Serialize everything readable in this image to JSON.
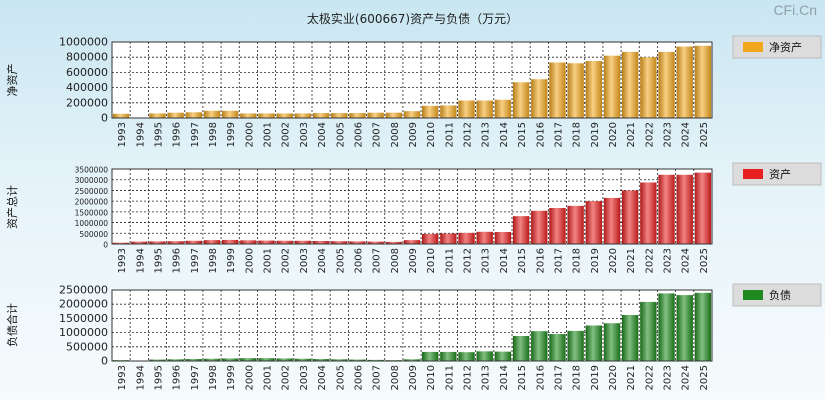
{
  "title": "太极实业(600667)资产与负债（万元）",
  "watermark": "CFi.Cn",
  "colors": {
    "net_assets": "#f2a81e",
    "total_assets": "#e81f1f",
    "liabilities": "#1e8a1e"
  },
  "chart_data": [
    {
      "type": "bar",
      "title": "",
      "ylabel": "净资产",
      "legend": "净资产",
      "color": "#f2a81e",
      "ylim": [
        0,
        1000000
      ],
      "yticks": [
        0,
        200000,
        400000,
        600000,
        800000,
        1000000
      ],
      "categories": [
        "1993",
        "1994",
        "1995",
        "1996",
        "1997",
        "1998",
        "1999",
        "2000",
        "2001",
        "2002",
        "2003",
        "2004",
        "2005",
        "2006",
        "2007",
        "2008",
        "2009",
        "2010",
        "2011",
        "2012",
        "2013",
        "2014",
        "2015",
        "2016",
        "2017",
        "2018",
        "2019",
        "2020",
        "2021",
        "2022",
        "2023",
        "2024",
        "2025"
      ],
      "values": [
        55000,
        5000,
        60000,
        70000,
        75000,
        95000,
        95000,
        60000,
        60000,
        60000,
        60000,
        65000,
        65000,
        65000,
        70000,
        70000,
        90000,
        160000,
        165000,
        230000,
        230000,
        240000,
        470000,
        510000,
        730000,
        720000,
        750000,
        820000,
        870000,
        800000,
        870000,
        940000,
        950000
      ]
    },
    {
      "type": "bar",
      "title": "",
      "ylabel": "资产总计",
      "legend": "资产",
      "color": "#e81f1f",
      "ylim": [
        0,
        3500000
      ],
      "yticks": [
        0,
        500000,
        1000000,
        1500000,
        2000000,
        2500000,
        3000000,
        3500000
      ],
      "categories": [
        "1993",
        "1994",
        "1995",
        "1996",
        "1997",
        "1998",
        "1999",
        "2000",
        "2001",
        "2002",
        "2003",
        "2004",
        "2005",
        "2006",
        "2007",
        "2008",
        "2009",
        "2010",
        "2011",
        "2012",
        "2013",
        "2014",
        "2015",
        "2016",
        "2017",
        "2018",
        "2019",
        "2020",
        "2021",
        "2022",
        "2023",
        "2024",
        "2025"
      ],
      "values": [
        60000,
        110000,
        120000,
        130000,
        150000,
        180000,
        190000,
        170000,
        160000,
        150000,
        150000,
        140000,
        130000,
        120000,
        110000,
        100000,
        180000,
        470000,
        490000,
        520000,
        570000,
        560000,
        1300000,
        1550000,
        1680000,
        1780000,
        2000000,
        2150000,
        2500000,
        2870000,
        3230000,
        3230000,
        3330000
      ]
    },
    {
      "type": "bar",
      "title": "",
      "ylabel": "负债合计",
      "legend": "负债",
      "color": "#1e8a1e",
      "ylim": [
        0,
        2500000
      ],
      "yticks": [
        0,
        500000,
        1000000,
        1500000,
        2000000,
        2500000
      ],
      "categories": [
        "1993",
        "1994",
        "1995",
        "1996",
        "1997",
        "1998",
        "1999",
        "2000",
        "2001",
        "2002",
        "2003",
        "2004",
        "2005",
        "2006",
        "2007",
        "2008",
        "2009",
        "2010",
        "2011",
        "2012",
        "2013",
        "2014",
        "2015",
        "2016",
        "2017",
        "2018",
        "2019",
        "2020",
        "2021",
        "2022",
        "2023",
        "2024",
        "2025"
      ],
      "values": [
        30000,
        5000,
        50000,
        60000,
        70000,
        80000,
        90000,
        100000,
        100000,
        90000,
        80000,
        70000,
        60000,
        50000,
        40000,
        30000,
        60000,
        320000,
        320000,
        310000,
        340000,
        330000,
        880000,
        1050000,
        950000,
        1060000,
        1250000,
        1330000,
        1620000,
        2080000,
        2380000,
        2320000,
        2400000
      ]
    }
  ]
}
